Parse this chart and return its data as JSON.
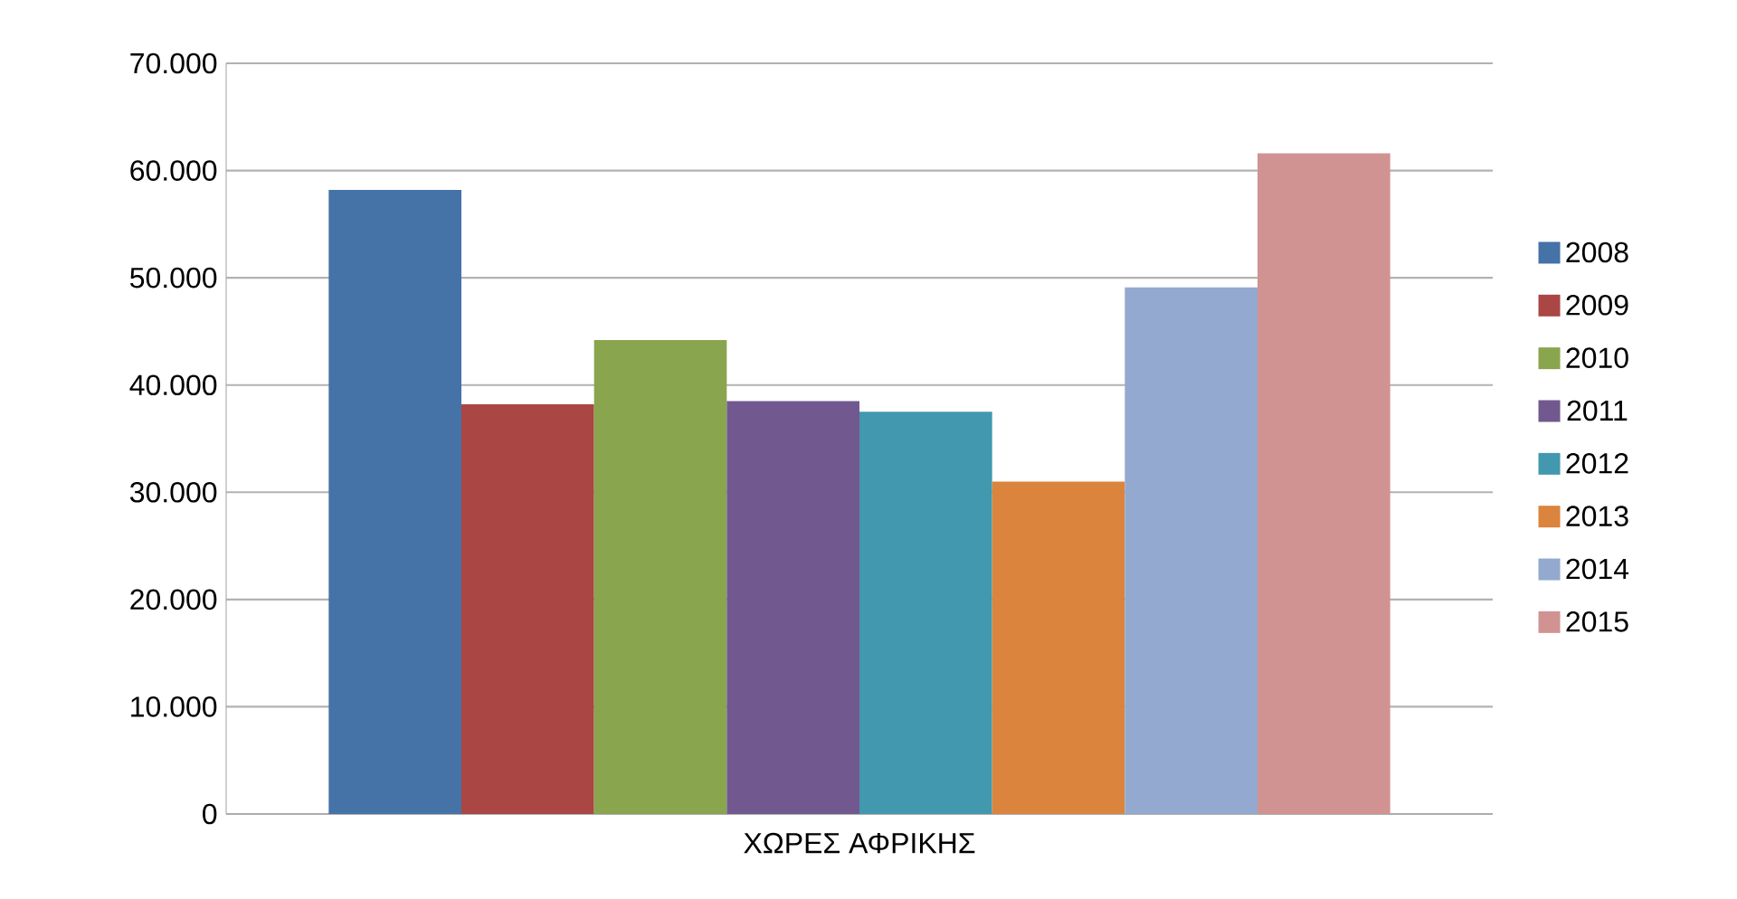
{
  "chart_data": {
    "type": "bar",
    "categories": [
      "ΧΩΡΕΣ ΑΦΡΙΚΗΣ"
    ],
    "series": [
      {
        "name": "2008",
        "color": "#4572a7",
        "values": [
          58200
        ]
      },
      {
        "name": "2009",
        "color": "#aa4643",
        "values": [
          38200
        ]
      },
      {
        "name": "2010",
        "color": "#89a54e",
        "values": [
          44200
        ]
      },
      {
        "name": "2011",
        "color": "#71588f",
        "values": [
          38500
        ]
      },
      {
        "name": "2012",
        "color": "#4198af",
        "values": [
          37500
        ]
      },
      {
        "name": "2013",
        "color": "#db843d",
        "values": [
          31000
        ]
      },
      {
        "name": "2014",
        "color": "#93a9cf",
        "values": [
          49100
        ]
      },
      {
        "name": "2015",
        "color": "#d19392",
        "values": [
          61600
        ]
      }
    ],
    "ylim": [
      0,
      70000
    ],
    "yticks": [
      0,
      {
        "value": 10000,
        "label": "10.000"
      },
      {
        "value": 20000,
        "label": "20.000"
      },
      {
        "value": 30000,
        "label": "30.000"
      },
      {
        "value": 40000,
        "label": "40.000"
      },
      {
        "value": 50000,
        "label": "50.000"
      },
      {
        "value": 60000,
        "label": "60.000"
      },
      {
        "value": 70000,
        "label": "70.000"
      }
    ],
    "grid": "y",
    "legend": "right"
  }
}
